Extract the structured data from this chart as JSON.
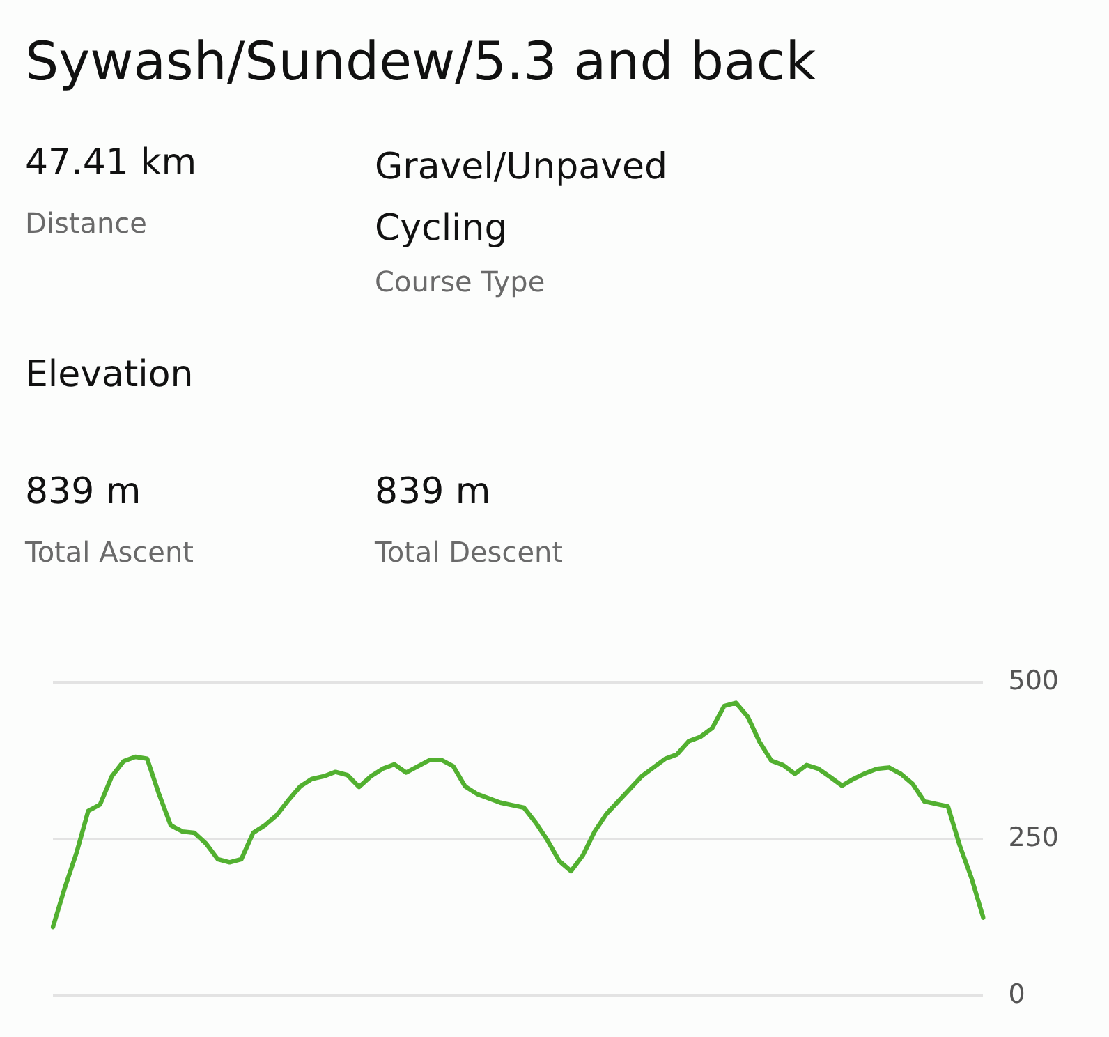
{
  "chart_data": {
    "type": "line",
    "title": "Sywash/Sundew/5.3 and back",
    "annotations": [
      "47.41 km",
      "Distance",
      "Gravel/Unpaved Cycling",
      "Course Type",
      "Elevation",
      "839 m",
      "Total Ascent",
      "839 m",
      "Total Descent"
    ],
    "categories": [
      null,
      null,
      null,
      null,
      null,
      null,
      null,
      null,
      null,
      null,
      null,
      null,
      null,
      null,
      null,
      null,
      null,
      null,
      null,
      null,
      null,
      null,
      null,
      null,
      null,
      null,
      null,
      null,
      null,
      null,
      null,
      null,
      null,
      null,
      null,
      null,
      null,
      null,
      null,
      null,
      null,
      null,
      null,
      null,
      null,
      null,
      null,
      null,
      null,
      null,
      null,
      null,
      null,
      null,
      null,
      null,
      null,
      null,
      null,
      null,
      null,
      null,
      null,
      null,
      null,
      null,
      null,
      null,
      null,
      null,
      null,
      null,
      null,
      null,
      null,
      null,
      null,
      null,
      null,
      null
    ],
    "series": [
      {
        "color": "#52b030",
        "values": [
          110,
          172,
          228,
          295,
          305,
          350,
          374,
          381,
          378,
          322,
          272,
          262,
          260,
          243,
          218,
          213,
          218,
          260,
          272,
          288,
          312,
          334,
          346,
          350,
          357,
          352,
          333,
          350,
          362,
          369,
          356,
          366,
          376,
          376,
          366,
          334,
          322,
          315,
          308,
          304,
          300,
          276,
          248,
          215,
          199,
          224,
          262,
          290,
          310,
          330,
          350,
          364,
          378,
          385,
          406,
          413,
          427,
          462,
          467,
          445,
          405,
          375,
          368,
          354,
          368,
          362,
          349,
          335,
          346,
          355,
          362,
          364,
          354,
          338,
          310,
          306,
          302,
          240,
          188,
          125
        ]
      }
    ],
    "ylim": [
      0,
      500
    ],
    "yticks": [
      0,
      250,
      500
    ],
    "grid": "y",
    "legend": false,
    "marker": "none",
    "line_style": "solid",
    "tick_labels": "y"
  }
}
